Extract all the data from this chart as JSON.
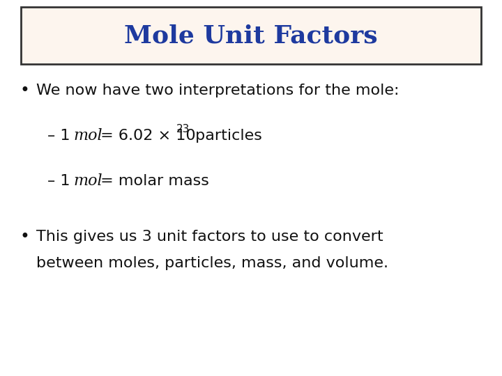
{
  "title": "Mole Unit Factors",
  "title_color": "#1E3A9F",
  "title_bg_color": "#FDF5EE",
  "title_border_color": "#333333",
  "bg_color": "#FFFFFF",
  "body_text_color": "#111111",
  "title_fontsize": 26,
  "body_fontsize": 16,
  "sub_fontsize": 15,
  "bullet1": "We now have two interpretations for the mole:",
  "bullet2_line1": "This gives us 3 unit factors to use to convert",
  "bullet2_line2": "between moles, particles, mass, and volume."
}
